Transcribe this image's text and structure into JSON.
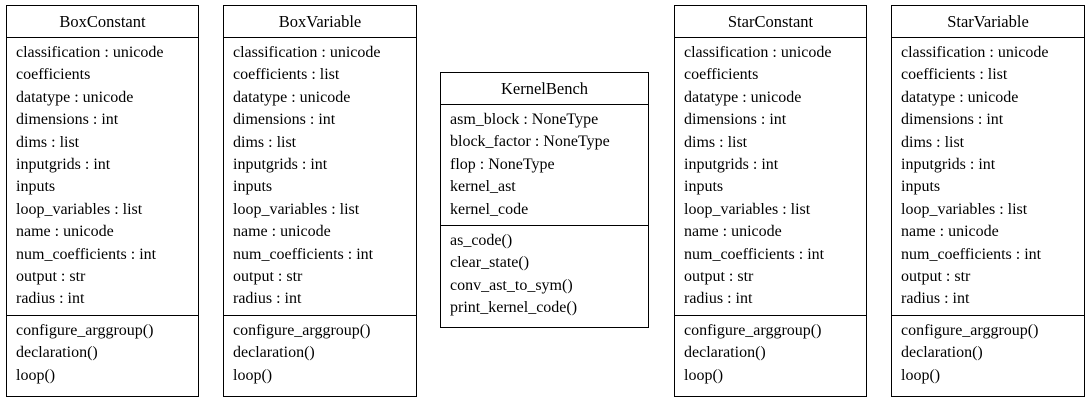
{
  "classes": [
    {
      "id": "box-constant",
      "name": "BoxConstant",
      "attributes": [
        "classification : unicode",
        "coefficients",
        "datatype : unicode",
        "dimensions : int",
        "dims : list",
        "inputgrids : int",
        "inputs",
        "loop_variables : list",
        "name : unicode",
        "num_coefficients : int",
        "output : str",
        "radius : int"
      ],
      "methods": [
        "configure_arggroup()",
        "declaration()",
        "loop()"
      ]
    },
    {
      "id": "box-variable",
      "name": "BoxVariable",
      "attributes": [
        "classification : unicode",
        "coefficients : list",
        "datatype : unicode",
        "dimensions : int",
        "dims : list",
        "inputgrids : int",
        "inputs",
        "loop_variables : list",
        "name : unicode",
        "num_coefficients : int",
        "output : str",
        "radius : int"
      ],
      "methods": [
        "configure_arggroup()",
        "declaration()",
        "loop()"
      ]
    },
    {
      "id": "kernel-bench",
      "name": "KernelBench",
      "attributes": [
        "asm_block : NoneType",
        "block_factor : NoneType",
        "flop : NoneType",
        "kernel_ast",
        "kernel_code"
      ],
      "methods": [
        "as_code()",
        "clear_state()",
        "conv_ast_to_sym()",
        "print_kernel_code()"
      ]
    },
    {
      "id": "star-constant",
      "name": "StarConstant",
      "attributes": [
        "classification : unicode",
        "coefficients",
        "datatype : unicode",
        "dimensions : int",
        "dims : list",
        "inputgrids : int",
        "inputs",
        "loop_variables : list",
        "name : unicode",
        "num_coefficients : int",
        "output : str",
        "radius : int"
      ],
      "methods": [
        "configure_arggroup()",
        "declaration()",
        "loop()"
      ]
    },
    {
      "id": "star-variable",
      "name": "StarVariable",
      "attributes": [
        "classification : unicode",
        "coefficients : list",
        "datatype : unicode",
        "dimensions : int",
        "dims : list",
        "inputgrids : int",
        "inputs",
        "loop_variables : list",
        "name : unicode",
        "num_coefficients : int",
        "output : str",
        "radius : int"
      ],
      "methods": [
        "configure_arggroup()",
        "declaration()",
        "loop()"
      ]
    }
  ]
}
